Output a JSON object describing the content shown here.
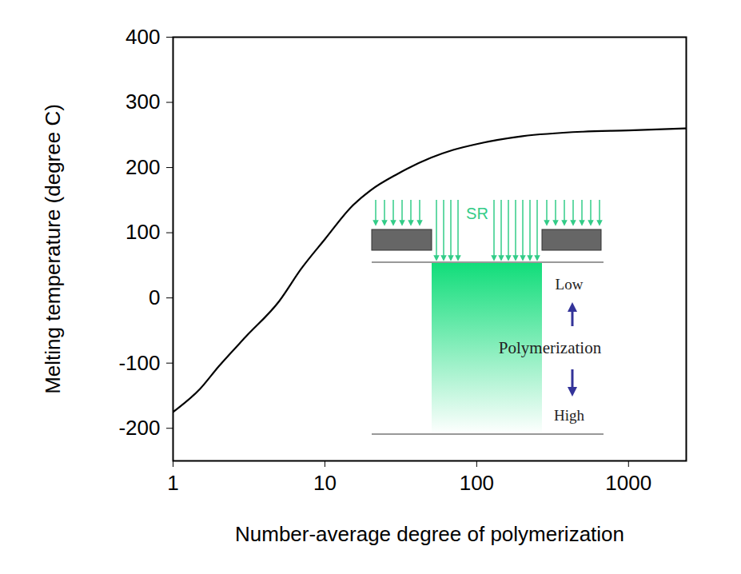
{
  "chart_data": {
    "type": "line",
    "xlabel": "Number-average degree of polymerization",
    "ylabel": "Melting temperature (degree C)",
    "log": "x",
    "x": [
      1,
      1.5,
      2,
      3,
      5,
      7,
      10,
      15,
      20,
      30,
      50,
      70,
      100,
      200,
      500,
      1000,
      2400
    ],
    "series": [
      {
        "name": "Melting temperature",
        "color": "#000000",
        "values": [
          -175,
          -140,
          -105,
          -60,
          -5,
          45,
          90,
          140,
          165,
          190,
          215,
          227,
          236,
          248,
          255,
          257,
          260
        ]
      }
    ],
    "xlim": [
      1,
      2400
    ],
    "ylim": [
      -250,
      400
    ],
    "xticks": [
      1,
      10,
      100,
      1000
    ],
    "yticks": [
      -200,
      -100,
      0,
      100,
      200,
      300,
      400
    ],
    "grid": false,
    "annotations": [
      "SR",
      "Low",
      "Polymerization",
      "High"
    ]
  }
}
